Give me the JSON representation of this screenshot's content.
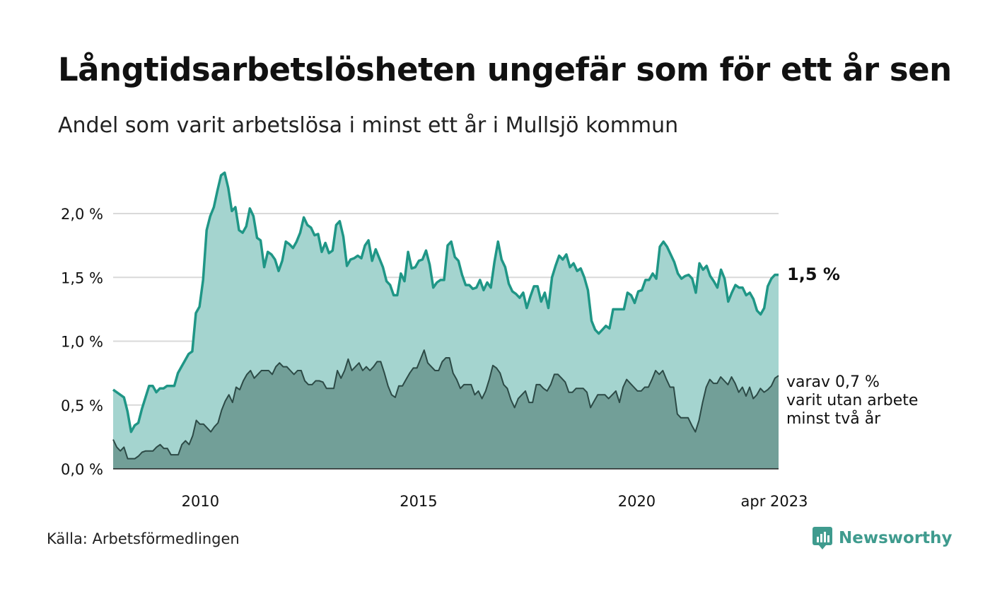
{
  "title": "Långtidsarbetslösheten ungefär som för ett år sen",
  "subtitle": "Andel som varit arbetslösa i minst ett år i Mullsjö kommun",
  "source": "Källa: Arbetsförmedlingen",
  "brand": "Newsworthy",
  "annotation_main": "1,5 %",
  "annotation_sub": [
    "varav 0,7 %",
    "varit utan arbete",
    "minst två år"
  ],
  "colors": {
    "series1_line": "#1f9686",
    "series1_fill": "#a4d4cf",
    "series2_line": "#2c4a46",
    "series2_fill": "#729f98",
    "grid": "#d9d9d9",
    "brand": "#3f9b8e"
  },
  "chart_data": {
    "type": "area",
    "x_start": "2008-01",
    "x_end": "2023-04",
    "y_ticks": [
      "0,0 %",
      "0,5 %",
      "1,0 %",
      "1,5 %",
      "2,0 %"
    ],
    "y_tick_values": [
      0,
      0.5,
      1.0,
      1.5,
      2.0
    ],
    "x_ticks": [
      "2010",
      "2015",
      "2020",
      "apr 2023"
    ],
    "x_tick_values": [
      2010,
      2015,
      2020,
      2023.25
    ],
    "ylim": [
      0,
      2.35
    ],
    "grid": true,
    "series": [
      {
        "values": [
          0.62,
          0.6,
          0.58,
          0.56,
          0.45,
          0.29,
          0.34,
          0.36,
          0.47,
          0.56,
          0.65,
          0.65,
          0.6,
          0.63,
          0.63,
          0.65,
          0.65,
          0.65,
          0.75,
          0.8,
          0.85,
          0.9,
          0.92,
          1.22,
          1.27,
          1.48,
          1.87,
          1.98,
          2.05,
          2.18,
          2.3,
          2.32,
          2.2,
          2.02,
          2.05,
          1.87,
          1.85,
          1.9,
          2.04,
          1.98,
          1.81,
          1.79,
          1.58,
          1.7,
          1.68,
          1.64,
          1.55,
          1.63,
          1.78,
          1.76,
          1.73,
          1.78,
          1.85,
          1.97,
          1.91,
          1.89,
          1.83,
          1.84,
          1.7,
          1.77,
          1.69,
          1.71,
          1.91,
          1.94,
          1.82,
          1.59,
          1.64,
          1.65,
          1.67,
          1.65,
          1.75,
          1.79,
          1.63,
          1.72,
          1.65,
          1.58,
          1.47,
          1.44,
          1.36,
          1.36,
          1.53,
          1.47,
          1.7,
          1.57,
          1.58,
          1.63,
          1.64,
          1.71,
          1.6,
          1.42,
          1.46,
          1.48,
          1.48,
          1.75,
          1.78,
          1.66,
          1.63,
          1.52,
          1.44,
          1.44,
          1.41,
          1.42,
          1.48,
          1.4,
          1.46,
          1.42,
          1.62,
          1.78,
          1.64,
          1.58,
          1.45,
          1.39,
          1.37,
          1.34,
          1.38,
          1.26,
          1.35,
          1.43,
          1.43,
          1.31,
          1.38,
          1.26,
          1.5,
          1.59,
          1.67,
          1.64,
          1.68,
          1.58,
          1.61,
          1.55,
          1.57,
          1.5,
          1.4,
          1.16,
          1.09,
          1.06,
          1.09,
          1.12,
          1.1,
          1.25,
          1.25,
          1.25,
          1.25,
          1.38,
          1.36,
          1.3,
          1.39,
          1.4,
          1.48,
          1.48,
          1.53,
          1.49,
          1.74,
          1.78,
          1.74,
          1.68,
          1.62,
          1.53,
          1.49,
          1.51,
          1.52,
          1.49,
          1.38,
          1.61,
          1.56,
          1.59,
          1.51,
          1.47,
          1.42,
          1.56,
          1.49,
          1.31,
          1.38,
          1.44,
          1.42,
          1.42,
          1.36,
          1.38,
          1.33,
          1.24,
          1.21,
          1.26,
          1.43,
          1.49,
          1.52,
          1.52
        ]
      },
      {
        "values": [
          0.23,
          0.17,
          0.14,
          0.17,
          0.08,
          0.08,
          0.08,
          0.1,
          0.13,
          0.14,
          0.14,
          0.14,
          0.17,
          0.19,
          0.16,
          0.16,
          0.11,
          0.11,
          0.11,
          0.19,
          0.22,
          0.19,
          0.26,
          0.38,
          0.35,
          0.35,
          0.32,
          0.29,
          0.33,
          0.36,
          0.46,
          0.53,
          0.58,
          0.52,
          0.64,
          0.62,
          0.69,
          0.74,
          0.77,
          0.71,
          0.74,
          0.77,
          0.77,
          0.77,
          0.74,
          0.8,
          0.83,
          0.8,
          0.8,
          0.77,
          0.74,
          0.77,
          0.77,
          0.69,
          0.66,
          0.66,
          0.69,
          0.69,
          0.68,
          0.63,
          0.63,
          0.63,
          0.77,
          0.71,
          0.77,
          0.86,
          0.77,
          0.8,
          0.83,
          0.77,
          0.8,
          0.77,
          0.8,
          0.84,
          0.84,
          0.75,
          0.65,
          0.58,
          0.56,
          0.65,
          0.65,
          0.7,
          0.75,
          0.79,
          0.79,
          0.86,
          0.93,
          0.83,
          0.8,
          0.77,
          0.77,
          0.84,
          0.87,
          0.87,
          0.75,
          0.7,
          0.63,
          0.66,
          0.66,
          0.66,
          0.58,
          0.61,
          0.55,
          0.61,
          0.7,
          0.81,
          0.79,
          0.75,
          0.66,
          0.63,
          0.54,
          0.48,
          0.55,
          0.58,
          0.61,
          0.52,
          0.52,
          0.66,
          0.66,
          0.63,
          0.61,
          0.66,
          0.74,
          0.74,
          0.71,
          0.68,
          0.6,
          0.6,
          0.63,
          0.63,
          0.63,
          0.6,
          0.48,
          0.53,
          0.58,
          0.58,
          0.58,
          0.55,
          0.58,
          0.61,
          0.52,
          0.64,
          0.7,
          0.67,
          0.64,
          0.61,
          0.61,
          0.64,
          0.64,
          0.7,
          0.77,
          0.74,
          0.77,
          0.7,
          0.64,
          0.64,
          0.43,
          0.4,
          0.4,
          0.4,
          0.34,
          0.29,
          0.38,
          0.52,
          0.64,
          0.7,
          0.67,
          0.67,
          0.72,
          0.69,
          0.66,
          0.72,
          0.67,
          0.6,
          0.64,
          0.57,
          0.64,
          0.55,
          0.58,
          0.63,
          0.6,
          0.62,
          0.65,
          0.71,
          0.73
        ]
      }
    ]
  }
}
